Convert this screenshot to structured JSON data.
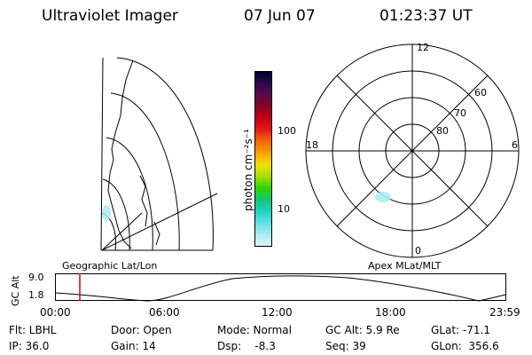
{
  "header": {
    "title": "Ultraviolet Imager",
    "date": "07 Jun 07",
    "time": "01:23:37 UT"
  },
  "colorbar": {
    "unit_label": "photon cm⁻²s⁻¹",
    "ticks": [
      "100",
      "10"
    ],
    "colors": [
      "#000033",
      "#2a0a4a",
      "#5a0a4a",
      "#8a0020",
      "#c40010",
      "#e41a1a",
      "#f46a00",
      "#f2a400",
      "#f2e100",
      "#a6e000",
      "#33d400",
      "#10c870",
      "#20d0c0",
      "#60e0e0",
      "#a8ecf0",
      "#e0f4f8"
    ]
  },
  "left_panel": {
    "caption": "Geographic Lat/Lon"
  },
  "right_panel": {
    "caption": "Apex MLat/MLT",
    "mlt_labels": {
      "top": "12",
      "bottom": "0",
      "left": "18",
      "right": "6"
    },
    "lat_labels": [
      "80",
      "70",
      "60"
    ]
  },
  "timeline": {
    "ylabel": "GC Alt",
    "y_ticks": [
      "9.0",
      "1.8"
    ],
    "x_ticks": [
      "00:00",
      "06:00",
      "12:00",
      "18:00",
      "23:59"
    ],
    "marker_color": "#dd0000"
  },
  "footer": {
    "flt": "Flt: LBHL",
    "door": "Door: Open",
    "mode": "Mode: Normal",
    "gcalt": "GC Alt: 5.9 Re",
    "glat": "GLat:  -71.1",
    "ip": "IP: 36.0",
    "gain": "Gain: 14",
    "dsp": "Dsp:    -8.3",
    "seq": "Seq: 39",
    "glon": "GLon:  356.6"
  }
}
